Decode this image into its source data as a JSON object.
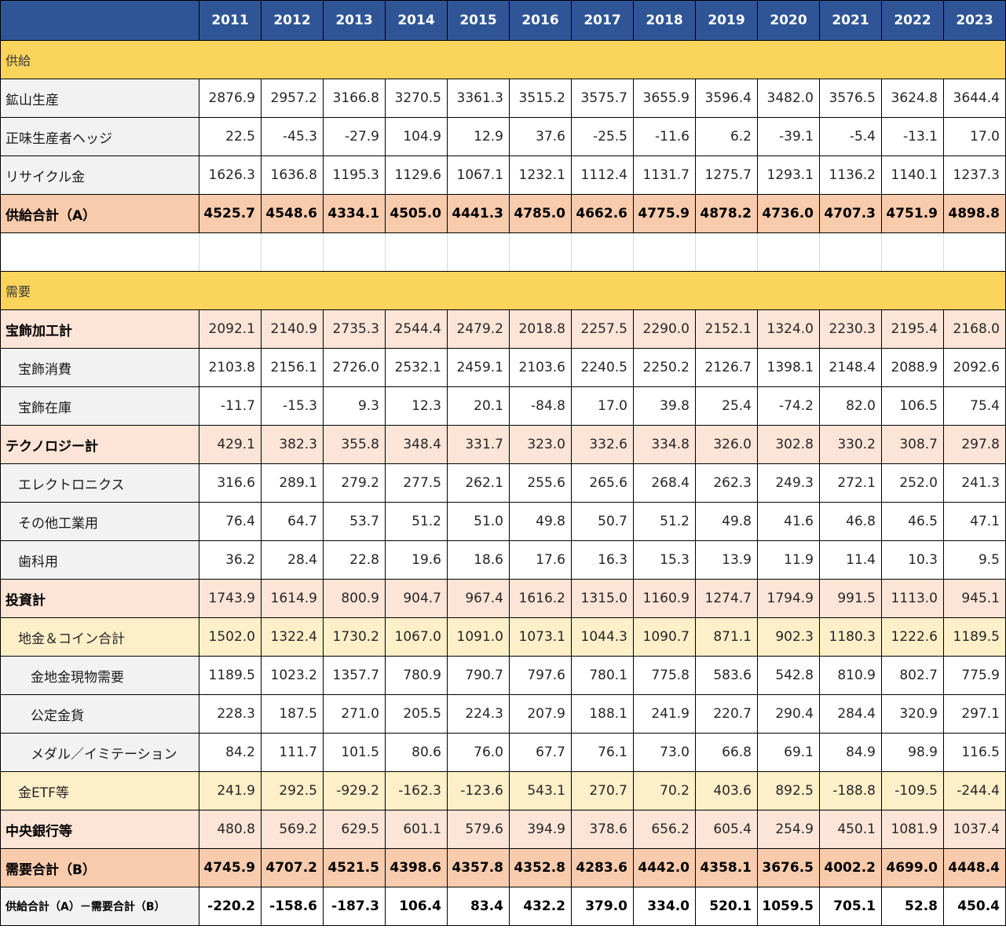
{
  "colors": {
    "header_bg": "#2F5597",
    "section_bg": "#FBD45C",
    "total_bg": "#F8CBAD",
    "subtotal_bg": "#FCE4D6",
    "invest_bg": "#FDEFC8",
    "label_bg": "#F2F2F2"
  },
  "chart_data": {
    "type": "table",
    "columns": [
      "2011",
      "2012",
      "2013",
      "2014",
      "2015",
      "2016",
      "2017",
      "2018",
      "2019",
      "2020",
      "2021",
      "2022",
      "2023"
    ],
    "rows": [
      {
        "key": "supply-section",
        "style": "section",
        "label": "供給"
      },
      {
        "key": "mine-production",
        "style": "plain",
        "indent": 0,
        "label": "鉱山生産",
        "values": [
          "2876.9",
          "2957.2",
          "3166.8",
          "3270.5",
          "3361.3",
          "3515.2",
          "3575.7",
          "3655.9",
          "3596.4",
          "3482.0",
          "3576.5",
          "3624.8",
          "3644.4"
        ]
      },
      {
        "key": "net-producer-hedging",
        "style": "plain",
        "indent": 0,
        "label": "正味生産者ヘッジ",
        "values": [
          "22.5",
          "-45.3",
          "-27.9",
          "104.9",
          "12.9",
          "37.6",
          "-25.5",
          "-11.6",
          "6.2",
          "-39.1",
          "-5.4",
          "-13.1",
          "17.0"
        ]
      },
      {
        "key": "recycled-gold",
        "style": "plain",
        "indent": 0,
        "label": "リサイクル金",
        "values": [
          "1626.3",
          "1636.8",
          "1195.3",
          "1129.6",
          "1067.1",
          "1232.1",
          "1112.4",
          "1131.7",
          "1275.7",
          "1293.1",
          "1136.2",
          "1140.1",
          "1237.3"
        ]
      },
      {
        "key": "total-supply",
        "style": "total",
        "indent": 0,
        "label": "供給合計（A）",
        "values": [
          "4525.7",
          "4548.6",
          "4334.1",
          "4505.0",
          "4441.3",
          "4785.0",
          "4662.6",
          "4775.9",
          "4878.2",
          "4736.0",
          "4707.3",
          "4751.9",
          "4898.8"
        ]
      },
      {
        "key": "spacer",
        "style": "spacer"
      },
      {
        "key": "demand-section",
        "style": "section",
        "label": "需要"
      },
      {
        "key": "jewellery-fabrication-total",
        "style": "subtotal",
        "indent": 0,
        "label": "宝飾加工計",
        "values": [
          "2092.1",
          "2140.9",
          "2735.3",
          "2544.4",
          "2479.2",
          "2018.8",
          "2257.5",
          "2290.0",
          "2152.1",
          "1324.0",
          "2230.3",
          "2195.4",
          "2168.0"
        ]
      },
      {
        "key": "jewellery-consumption",
        "style": "plain",
        "indent": 1,
        "label": "宝飾消費",
        "values": [
          "2103.8",
          "2156.1",
          "2726.0",
          "2532.1",
          "2459.1",
          "2103.6",
          "2240.5",
          "2250.2",
          "2126.7",
          "1398.1",
          "2148.4",
          "2088.9",
          "2092.6"
        ]
      },
      {
        "key": "jewellery-inventory",
        "style": "plain",
        "indent": 1,
        "label": "宝飾在庫",
        "values": [
          "-11.7",
          "-15.3",
          "9.3",
          "12.3",
          "20.1",
          "-84.8",
          "17.0",
          "39.8",
          "25.4",
          "-74.2",
          "82.0",
          "106.5",
          "75.4"
        ]
      },
      {
        "key": "technology-total",
        "style": "subtotal",
        "indent": 0,
        "label": "テクノロジー計",
        "values": [
          "429.1",
          "382.3",
          "355.8",
          "348.4",
          "331.7",
          "323.0",
          "332.6",
          "334.8",
          "326.0",
          "302.8",
          "330.2",
          "308.7",
          "297.8"
        ]
      },
      {
        "key": "electronics",
        "style": "plain",
        "indent": 1,
        "label": "エレクトロニクス",
        "values": [
          "316.6",
          "289.1",
          "279.2",
          "277.5",
          "262.1",
          "255.6",
          "265.6",
          "268.4",
          "262.3",
          "249.3",
          "272.1",
          "252.0",
          "241.3"
        ]
      },
      {
        "key": "other-industrial",
        "style": "plain",
        "indent": 1,
        "label": "その他工業用",
        "values": [
          "76.4",
          "64.7",
          "53.7",
          "51.2",
          "51.0",
          "49.8",
          "50.7",
          "51.2",
          "49.8",
          "41.6",
          "46.8",
          "46.5",
          "47.1"
        ]
      },
      {
        "key": "dental",
        "style": "plain",
        "indent": 1,
        "label": "歯科用",
        "values": [
          "36.2",
          "28.4",
          "22.8",
          "19.6",
          "18.6",
          "17.6",
          "16.3",
          "15.3",
          "13.9",
          "11.9",
          "11.4",
          "10.3",
          "9.5"
        ]
      },
      {
        "key": "investment-total",
        "style": "subtotal",
        "indent": 0,
        "label": "投資計",
        "values": [
          "1743.9",
          "1614.9",
          "800.9",
          "904.7",
          "967.4",
          "1616.2",
          "1315.0",
          "1160.9",
          "1274.7",
          "1794.9",
          "991.5",
          "1113.0",
          "945.1"
        ]
      },
      {
        "key": "bar-and-coin-total",
        "style": "invest",
        "indent": 1,
        "label": "地金＆コイン合計",
        "values": [
          "1502.0",
          "1322.4",
          "1730.2",
          "1067.0",
          "1091.0",
          "1073.1",
          "1044.3",
          "1090.7",
          "871.1",
          "902.3",
          "1180.3",
          "1222.6",
          "1189.5"
        ]
      },
      {
        "key": "physical-bar-demand",
        "style": "plain",
        "indent": 2,
        "label": "金地金現物需要",
        "values": [
          "1189.5",
          "1023.2",
          "1357.7",
          "780.9",
          "790.7",
          "797.6",
          "780.1",
          "775.8",
          "583.6",
          "542.8",
          "810.9",
          "802.7",
          "775.9"
        ]
      },
      {
        "key": "official-coins",
        "style": "plain",
        "indent": 2,
        "label": "公定金貨",
        "values": [
          "228.3",
          "187.5",
          "271.0",
          "205.5",
          "224.3",
          "207.9",
          "188.1",
          "241.9",
          "220.7",
          "290.4",
          "284.4",
          "320.9",
          "297.1"
        ]
      },
      {
        "key": "medals-imitation",
        "style": "plain",
        "indent": 2,
        "label": "メダル／イミテーション",
        "values": [
          "84.2",
          "111.7",
          "101.5",
          "80.6",
          "76.0",
          "67.7",
          "76.1",
          "73.0",
          "66.8",
          "69.1",
          "84.9",
          "98.9",
          "116.5"
        ]
      },
      {
        "key": "gold-etfs",
        "style": "invest",
        "indent": 1,
        "label": "金ETF等",
        "values": [
          "241.9",
          "292.5",
          "-929.2",
          "-162.3",
          "-123.6",
          "543.1",
          "270.7",
          "70.2",
          "403.6",
          "892.5",
          "-188.8",
          "-109.5",
          "-244.4"
        ]
      },
      {
        "key": "central-banks",
        "style": "subtotal",
        "indent": 0,
        "label": "中央銀行等",
        "values": [
          "480.8",
          "569.2",
          "629.5",
          "601.1",
          "579.6",
          "394.9",
          "378.6",
          "656.2",
          "605.4",
          "254.9",
          "450.1",
          "1081.9",
          "1037.4"
        ]
      },
      {
        "key": "total-demand",
        "style": "total",
        "indent": 0,
        "label": "需要合計（B）",
        "values": [
          "4745.9",
          "4707.2",
          "4521.5",
          "4398.6",
          "4357.8",
          "4352.8",
          "4283.6",
          "4442.0",
          "4358.1",
          "3676.5",
          "4002.2",
          "4699.0",
          "4448.4"
        ]
      },
      {
        "key": "supply-minus-demand",
        "style": "diff",
        "indent": 0,
        "label": "供給合計（A）－需要合計（B）",
        "values": [
          "-220.2",
          "-158.6",
          "-187.3",
          "106.4",
          "83.4",
          "432.2",
          "379.0",
          "334.0",
          "520.1",
          "1059.5",
          "705.1",
          "52.8",
          "450.4"
        ]
      }
    ]
  }
}
